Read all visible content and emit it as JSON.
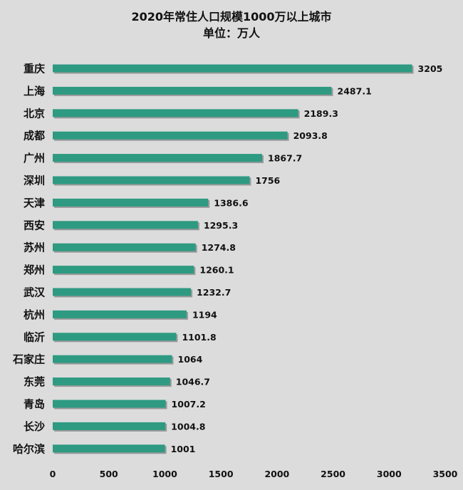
{
  "chart_data": {
    "type": "bar",
    "orientation": "horizontal",
    "title": "2020年常住人口规模1000万以上城市",
    "subtitle": "单位：万人",
    "categories": [
      "重庆",
      "上海",
      "北京",
      "成都",
      "广州",
      "深圳",
      "天津",
      "西安",
      "苏州",
      "郑州",
      "武汉",
      "杭州",
      "临沂",
      "石家庄",
      "东莞",
      "青岛",
      "长沙",
      "哈尔滨"
    ],
    "value_labels": [
      "3205",
      "2487.1",
      "2189.3",
      "2093.8",
      "1867.7",
      "1756",
      "1386.6",
      "1295.3",
      "1274.8",
      "1260.1",
      "1232.7",
      "1194",
      "1101.8",
      "1064",
      "1046.7",
      "1007.2",
      "1004.8",
      "1001"
    ],
    "values": [
      3205,
      2487.1,
      2189.3,
      2093.8,
      1867.7,
      1756,
      1386.6,
      1295.3,
      1274.8,
      1260.1,
      1232.7,
      1194,
      1101.8,
      1064,
      1046.7,
      1007.2,
      1004.8,
      1001
    ],
    "xlim": [
      0,
      3500
    ],
    "xticks": [
      "0",
      "500",
      "1000",
      "1500",
      "2000",
      "2500",
      "3000",
      "3500"
    ],
    "grid": false,
    "bar_color": "#2e9a82",
    "background": "#dcdcdc"
  }
}
